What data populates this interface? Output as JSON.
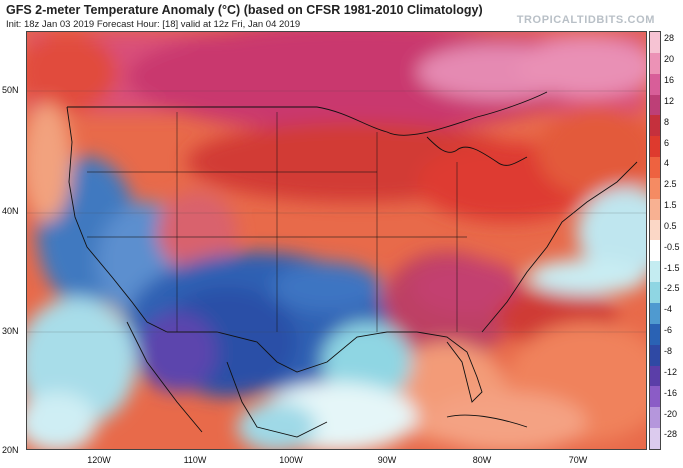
{
  "header": {
    "title": "GFS 2-meter Temperature Anomaly (°C) (based on CFSR 1981-2010 Climatology)",
    "subtitle": "Init: 18z Jan 03 2019   Forecast Hour: [18]   valid at 12z Fri, Jan 04 2019",
    "brand": "TROPICALTIDBITS.COM"
  },
  "map": {
    "lat_labels": [
      "50N",
      "40N",
      "30N",
      "20N"
    ],
    "lon_labels": [
      "120W",
      "110W",
      "100W",
      "90W",
      "80W",
      "70W"
    ]
  },
  "colorbar": {
    "labels": [
      "28",
      "20",
      "16",
      "12",
      "8",
      "6",
      "4",
      "2.5",
      "1.5",
      "0.5",
      "-0.5",
      "-1.5",
      "-2.5",
      "-4",
      "-6",
      "-8",
      "-12",
      "-16",
      "-20",
      "-28"
    ],
    "colors": [
      "#f6c3d3",
      "#ec92b6",
      "#d85e99",
      "#bd3f77",
      "#c5303d",
      "#de3a2e",
      "#ee6240",
      "#f58b63",
      "#f8b192",
      "#fbd7c6",
      "#ffffff",
      "#c4ecf1",
      "#8fd6e3",
      "#4f9ad0",
      "#2a62b4",
      "#2f49a4",
      "#5b3ea8",
      "#8b5cc6",
      "#b596dc",
      "#dccbee"
    ]
  }
}
